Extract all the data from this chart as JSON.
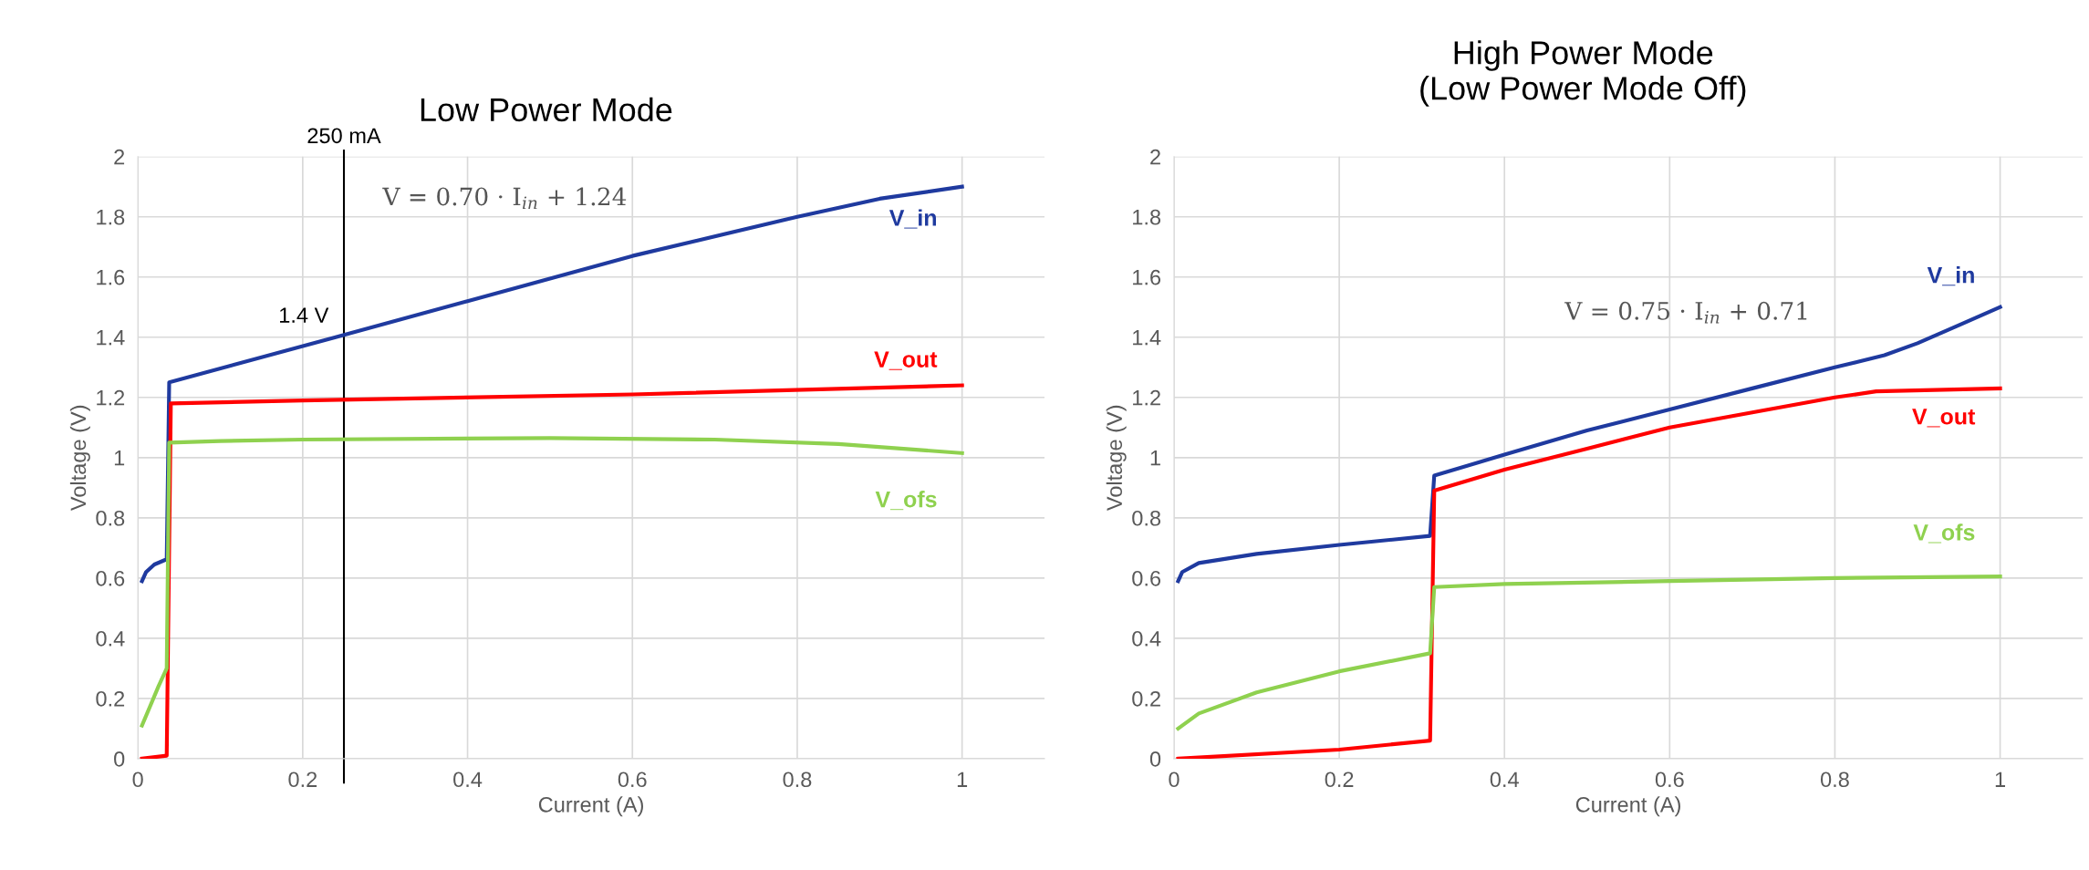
{
  "chart_data": [
    {
      "type": "line",
      "title": "Low Power Mode",
      "xlabel": "Current (A)",
      "ylabel": "Voltage (V)",
      "xlim": [
        0,
        1.1
      ],
      "ylim": [
        0,
        2
      ],
      "xticks": [
        0,
        0.2,
        0.4,
        0.6,
        0.8,
        1
      ],
      "yticks": [
        0,
        0.2,
        0.4,
        0.6,
        0.8,
        1,
        1.2,
        1.4,
        1.6,
        1.8,
        2
      ],
      "grid": true,
      "legend": false,
      "marker": "none",
      "line_style": "solid",
      "series": [
        {
          "name": "V_in",
          "color": "#1f3a9f",
          "x": [
            0.005,
            0.01,
            0.02,
            0.033,
            0.035,
            0.038,
            0.24,
            0.4,
            0.6,
            0.8,
            0.9,
            1.0
          ],
          "values": [
            0.59,
            0.62,
            0.645,
            0.66,
            0.66,
            1.25,
            1.4,
            1.52,
            1.67,
            1.8,
            1.86,
            1.9
          ]
        },
        {
          "name": "V_out",
          "color": "#ff0000",
          "x": [
            0.005,
            0.035,
            0.04,
            0.2,
            0.6,
            1.0
          ],
          "values": [
            0.0,
            0.01,
            1.18,
            1.19,
            1.21,
            1.24
          ]
        },
        {
          "name": "V_ofs",
          "color": "#8fd14f",
          "x": [
            0.005,
            0.025,
            0.035,
            0.038,
            0.1,
            0.2,
            0.5,
            0.7,
            0.85,
            1.0
          ],
          "values": [
            0.11,
            0.24,
            0.3,
            1.05,
            1.055,
            1.06,
            1.065,
            1.06,
            1.045,
            1.015
          ]
        }
      ],
      "ref_lines": [
        {
          "axis": "x",
          "value": 0.25,
          "label": "250 mA",
          "color": "#000000"
        }
      ],
      "annotations": [
        "V = 0.70 · I$_{in}$ + 1.24",
        {
          "text": "1.4 V",
          "x": 0.25,
          "y": 1.4
        }
      ]
    },
    {
      "type": "line",
      "title": "High Power Mode\n(Low Power Mode Off)",
      "xlabel": "Current (A)",
      "ylabel": "Voltage (V)",
      "xlim": [
        0,
        1.1
      ],
      "ylim": [
        0,
        2
      ],
      "xticks": [
        0,
        0.2,
        0.4,
        0.6,
        0.8,
        1
      ],
      "yticks": [
        0,
        0.2,
        0.4,
        0.6,
        0.8,
        1,
        1.2,
        1.4,
        1.6,
        1.8,
        2
      ],
      "grid": true,
      "legend": false,
      "marker": "none",
      "line_style": "solid",
      "series": [
        {
          "name": "V_in",
          "color": "#1f3a9f",
          "x": [
            0.005,
            0.01,
            0.03,
            0.1,
            0.2,
            0.31,
            0.315,
            0.4,
            0.5,
            0.6,
            0.7,
            0.8,
            0.86,
            0.9,
            0.95,
            1.0
          ],
          "values": [
            0.59,
            0.62,
            0.65,
            0.68,
            0.71,
            0.74,
            0.94,
            1.01,
            1.09,
            1.16,
            1.23,
            1.3,
            1.34,
            1.38,
            1.44,
            1.5
          ]
        },
        {
          "name": "V_out",
          "color": "#ff0000",
          "x": [
            0.005,
            0.2,
            0.31,
            0.315,
            0.4,
            0.5,
            0.6,
            0.7,
            0.8,
            0.85,
            1.0
          ],
          "values": [
            0.0,
            0.03,
            0.06,
            0.89,
            0.96,
            1.03,
            1.1,
            1.15,
            1.2,
            1.22,
            1.23
          ]
        },
        {
          "name": "V_ofs",
          "color": "#8fd14f",
          "x": [
            0.005,
            0.03,
            0.1,
            0.2,
            0.31,
            0.315,
            0.4,
            0.6,
            0.8,
            1.0
          ],
          "values": [
            0.1,
            0.15,
            0.22,
            0.29,
            0.35,
            0.57,
            0.58,
            0.59,
            0.6,
            0.605
          ]
        }
      ],
      "annotations": [
        "V = 0.75 · I$_{in}$ + 0.71"
      ]
    }
  ]
}
